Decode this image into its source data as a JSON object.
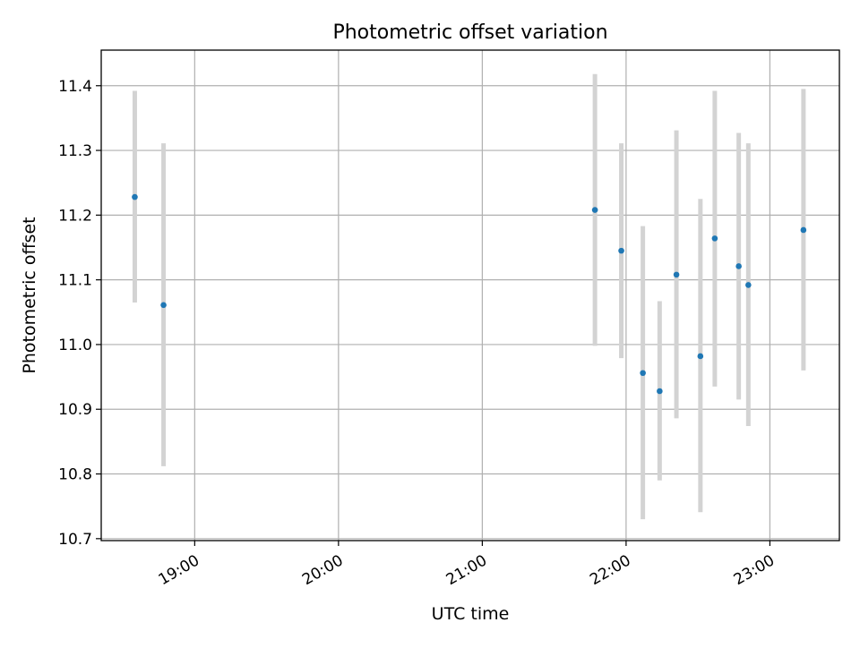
{
  "chart_data": {
    "type": "scatter",
    "title": "Photometric offset variation",
    "xlabel": "UTC time",
    "ylabel": "Photometric offset",
    "xlim": [
      "18:21",
      "23:29"
    ],
    "ylim": [
      10.697,
      11.455
    ],
    "x_ticks": [
      "19:00",
      "20:00",
      "21:00",
      "22:00",
      "23:00"
    ],
    "y_ticks": [
      "10.7",
      "10.8",
      "10.9",
      "11.0",
      "11.1",
      "11.2",
      "11.3",
      "11.4"
    ],
    "grid": true,
    "errorbars": true,
    "colors": {
      "points": "#1f77b4",
      "errorbars": "#d3d3d3",
      "grid": "#b0b0b0",
      "axes": "#000000"
    },
    "points": [
      {
        "x": "18:35",
        "y": 11.228,
        "err_low": 11.065,
        "err_high": 11.392
      },
      {
        "x": "18:47",
        "y": 11.061,
        "err_low": 10.812,
        "err_high": 11.311
      },
      {
        "x": "21:47",
        "y": 11.208,
        "err_low": 10.998,
        "err_high": 11.418
      },
      {
        "x": "21:58",
        "y": 11.145,
        "err_low": 10.979,
        "err_high": 11.311
      },
      {
        "x": "22:07",
        "y": 10.956,
        "err_low": 10.73,
        "err_high": 11.183
      },
      {
        "x": "22:14",
        "y": 10.928,
        "err_low": 10.79,
        "err_high": 11.067
      },
      {
        "x": "22:21",
        "y": 11.108,
        "err_low": 10.886,
        "err_high": 11.331
      },
      {
        "x": "22:31",
        "y": 10.982,
        "err_low": 10.741,
        "err_high": 11.225
      },
      {
        "x": "22:37",
        "y": 11.164,
        "err_low": 10.935,
        "err_high": 11.392
      },
      {
        "x": "22:47",
        "y": 11.121,
        "err_low": 10.915,
        "err_high": 11.327
      },
      {
        "x": "22:51",
        "y": 11.092,
        "err_low": 10.874,
        "err_high": 11.311
      },
      {
        "x": "23:14",
        "y": 11.177,
        "err_low": 10.96,
        "err_high": 11.395
      }
    ]
  }
}
